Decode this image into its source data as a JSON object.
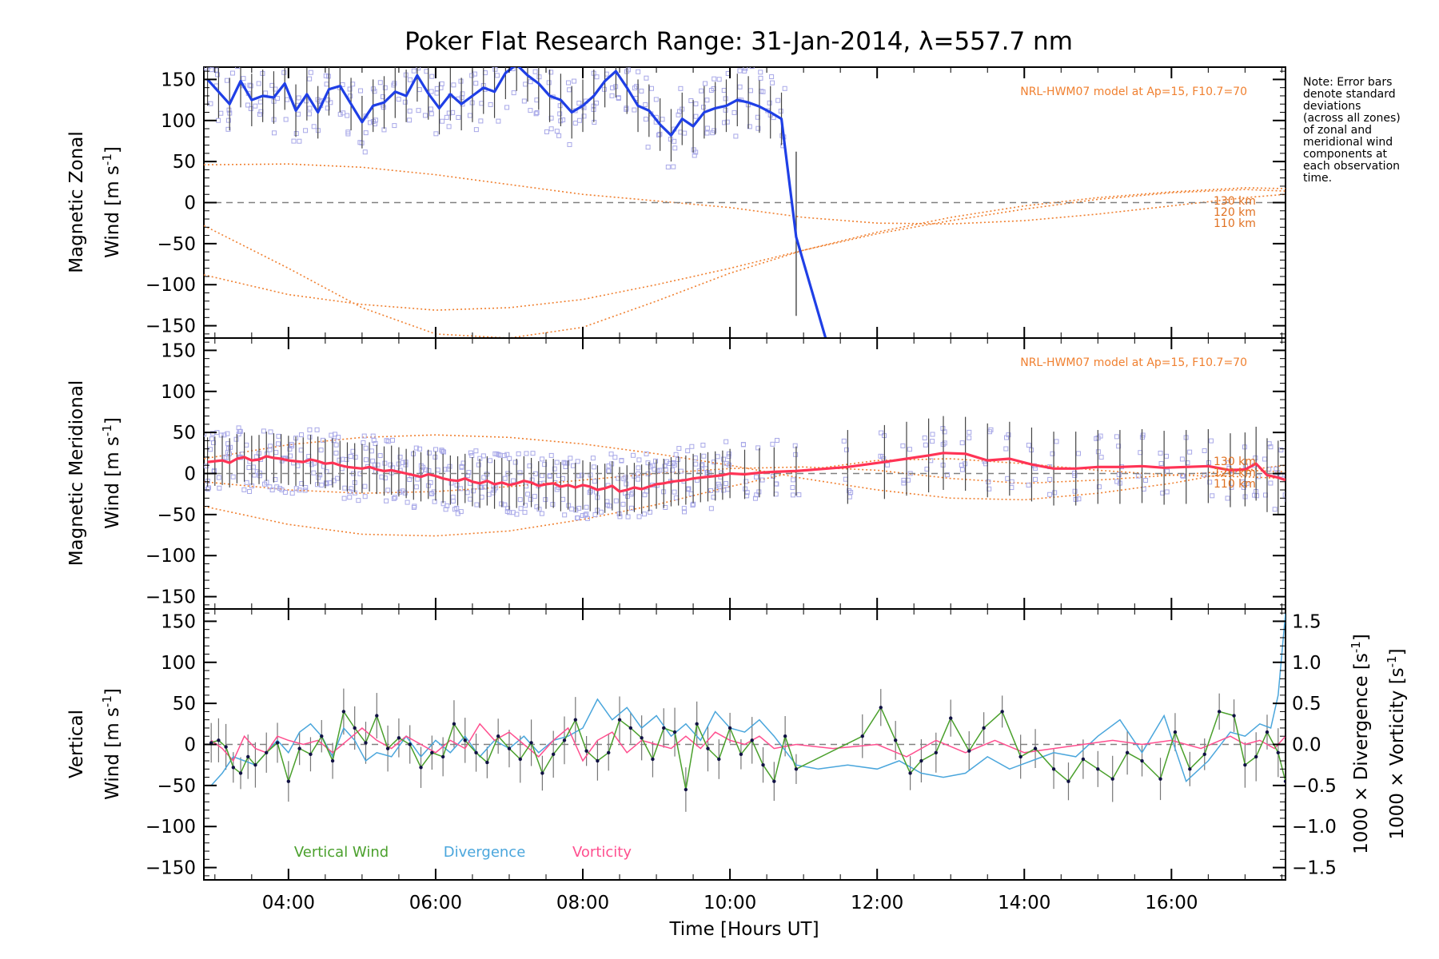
{
  "colors": {
    "zonal": "#1f3fe6",
    "meridional": "#ff3355",
    "model": "#f08030",
    "scatter": "#a8a8e8",
    "vertical": "#4aa02c",
    "divergence": "#4aa6dc",
    "vorticity": "#ff4f8f",
    "errorbar": "#444444",
    "dash": "#808080"
  },
  "chart_data": [
    {
      "type": "line",
      "title": "Poker Flat Research Range: 31-Jan-2014, λ=557.7 nm",
      "ylabel_line1": "Magnetic Zonal",
      "ylabel_line2": "Wind [m s",
      "ylabel_sup": "-1",
      "ylabel_end": "]",
      "ylim": [
        -165,
        165
      ],
      "xlim": [
        2.85,
        17.55
      ],
      "yticks": [
        "150",
        "100",
        "50",
        "0",
        "−50",
        "−100",
        "−150"
      ],
      "model_label": "NRL-HWM07 model at Ap=15, F10.7=70",
      "model_altitudes": [
        "130 km",
        "120 km",
        "110 km"
      ],
      "series": [
        {
          "x": [
            2.9,
            3.05,
            3.2,
            3.35,
            3.5,
            3.65,
            3.8,
            3.95,
            4.1,
            4.25,
            4.4,
            4.55,
            4.7,
            4.85,
            5.0,
            5.15,
            5.3,
            5.45,
            5.6,
            5.75,
            5.9,
            6.05,
            6.2,
            6.35,
            6.5,
            6.65,
            6.8,
            6.95,
            7.1,
            7.25,
            7.4,
            7.55,
            7.7,
            7.85,
            8.0,
            8.15,
            8.3,
            8.45,
            8.6,
            8.75,
            8.9,
            9.05,
            9.2,
            9.35,
            9.5,
            9.65,
            9.8,
            9.95,
            10.1,
            10.25,
            10.4,
            10.55,
            10.7,
            10.9,
            11.3
          ],
          "y": [
            150,
            135,
            120,
            148,
            125,
            130,
            128,
            145,
            112,
            132,
            110,
            138,
            142,
            120,
            98,
            118,
            122,
            135,
            130,
            155,
            133,
            115,
            132,
            120,
            130,
            140,
            135,
            158,
            168,
            155,
            145,
            130,
            125,
            110,
            118,
            130,
            148,
            160,
            140,
            118,
            112,
            95,
            82,
            102,
            93,
            110,
            115,
            118,
            125,
            122,
            117,
            110,
            102,
            -42,
            -165
          ]
        }
      ],
      "model_curves": [
        {
          "x": [
            2.85,
            4.0,
            5.0,
            6.0,
            7.0,
            8.0,
            9.0,
            10.0,
            11.0,
            12.0,
            13.0,
            14.0,
            15.0,
            16.0,
            17.0,
            17.55
          ],
          "y": [
            46,
            47,
            43,
            34,
            22,
            10,
            2,
            -6,
            -18,
            -25,
            -26,
            -22,
            -14,
            -4,
            6,
            10
          ]
        },
        {
          "x": [
            2.85,
            4.0,
            5.0,
            6.0,
            7.0,
            8.0,
            9.0,
            10.0,
            11.0,
            12.0,
            13.0,
            14.0,
            15.0,
            16.0,
            17.0,
            17.55
          ],
          "y": [
            -88,
            -112,
            -124,
            -131,
            -128,
            -118,
            -100,
            -80,
            -58,
            -36,
            -18,
            -4,
            6,
            13,
            18,
            17
          ]
        },
        {
          "x": [
            2.85,
            4.0,
            5.0,
            6.0,
            7.0,
            8.0,
            9.0,
            10.0,
            11.0,
            12.0,
            13.0,
            14.0,
            15.0,
            16.0,
            17.0,
            17.55
          ],
          "y": [
            -28,
            -80,
            -128,
            -160,
            -165,
            -152,
            -120,
            -86,
            -58,
            -38,
            -22,
            -8,
            4,
            12,
            16,
            14
          ]
        }
      ]
    },
    {
      "type": "line",
      "ylabel_line1": "Magnetic Meridional",
      "ylabel_line2": "Wind [m s",
      "ylabel_sup": "-1",
      "ylabel_end": "]",
      "ylim": [
        -165,
        165
      ],
      "xlim": [
        2.85,
        17.55
      ],
      "yticks": [
        "150",
        "100",
        "50",
        "0",
        "−50",
        "−100",
        "−150"
      ],
      "model_label": "NRL-HWM07 model at Ap=15, F10.7=70",
      "model_altitudes": [
        "130 km",
        "120 km",
        "110 km"
      ],
      "series": [
        {
          "x": [
            2.9,
            3.0,
            3.1,
            3.2,
            3.3,
            3.4,
            3.5,
            3.6,
            3.7,
            3.8,
            3.9,
            4.0,
            4.1,
            4.2,
            4.3,
            4.4,
            4.5,
            4.6,
            4.7,
            4.8,
            4.9,
            5.0,
            5.1,
            5.2,
            5.3,
            5.4,
            5.5,
            5.6,
            5.7,
            5.8,
            5.9,
            6.0,
            6.1,
            6.2,
            6.3,
            6.4,
            6.5,
            6.6,
            6.7,
            6.8,
            6.9,
            7.0,
            7.1,
            7.2,
            7.3,
            7.4,
            7.5,
            7.6,
            7.7,
            7.8,
            7.9,
            8.0,
            8.1,
            8.2,
            8.3,
            8.4,
            8.5,
            8.6,
            8.7,
            8.8,
            8.9,
            9.0,
            9.1,
            9.2,
            9.3,
            9.4,
            9.5,
            9.6,
            9.7,
            9.8,
            9.9,
            10.0,
            10.2,
            10.4,
            10.6,
            10.9,
            11.6,
            12.1,
            12.4,
            12.7,
            12.9,
            13.2,
            13.5,
            13.8,
            14.1,
            14.4,
            14.7,
            15.0,
            15.3,
            15.6,
            15.9,
            16.2,
            16.5,
            16.8,
            17.0,
            17.15,
            17.3,
            17.45,
            17.55
          ],
          "y": [
            14,
            15,
            16,
            13,
            18,
            20,
            16,
            17,
            21,
            19,
            18,
            16,
            15,
            14,
            17,
            15,
            12,
            13,
            10,
            8,
            7,
            6,
            8,
            5,
            3,
            4,
            2,
            0,
            -2,
            -4,
            -1,
            -3,
            -6,
            -8,
            -9,
            -6,
            -10,
            -12,
            -9,
            -13,
            -11,
            -14,
            -12,
            -9,
            -11,
            -15,
            -13,
            -12,
            -16,
            -14,
            -17,
            -14,
            -16,
            -20,
            -18,
            -15,
            -22,
            -20,
            -17,
            -19,
            -16,
            -13,
            -12,
            -10,
            -9,
            -8,
            -6,
            -5,
            -4,
            -3,
            -2,
            0,
            -1,
            1,
            2,
            3,
            8,
            14,
            18,
            22,
            25,
            24,
            16,
            18,
            11,
            6,
            6,
            8,
            8,
            9,
            7,
            8,
            9,
            4,
            5,
            12,
            -2,
            -5,
            -8
          ]
        }
      ],
      "model_curves": [
        {
          "x": [
            2.85,
            4.0,
            5.0,
            6.0,
            7.0,
            8.0,
            9.0,
            10.0,
            11.0,
            12.0,
            13.0,
            14.0,
            15.0,
            16.0,
            17.0,
            17.55
          ],
          "y": [
            18,
            35,
            44,
            47,
            44,
            36,
            24,
            10,
            -6,
            -20,
            -30,
            -32,
            -24,
            -12,
            4,
            10
          ]
        },
        {
          "x": [
            2.85,
            4.0,
            5.0,
            6.0,
            7.0,
            8.0,
            9.0,
            10.0,
            11.0,
            12.0,
            13.0,
            14.0,
            15.0,
            16.0,
            17.0,
            17.55
          ],
          "y": [
            -40,
            -62,
            -74,
            -76,
            -70,
            -56,
            -38,
            -16,
            4,
            16,
            18,
            12,
            4,
            -2,
            -4,
            -6
          ]
        },
        {
          "x": [
            2.85,
            4.0,
            5.0,
            6.0,
            7.0,
            8.0,
            9.0,
            10.0,
            11.0,
            12.0,
            13.0,
            14.0,
            15.0,
            16.0,
            17.0,
            17.55
          ],
          "y": [
            -10,
            -20,
            -24,
            -22,
            -16,
            -8,
            0,
            6,
            8,
            4,
            -6,
            -12,
            -8,
            -2,
            4,
            2
          ]
        }
      ]
    },
    {
      "type": "line",
      "ylabel_line1": "Vertical",
      "ylabel_line2": "Wind [m s",
      "ylabel_sup": "-1",
      "ylabel_end": "]",
      "ylim": [
        -165,
        165
      ],
      "xlim": [
        2.85,
        17.55
      ],
      "yticks": [
        "150",
        "100",
        "50",
        "0",
        "−50",
        "−100",
        "−150"
      ],
      "y2label_div": "1000 × Divergence [s",
      "y2label_vort": "1000 × Vorticity [s",
      "y2label_sup": "-1",
      "y2label_end": "]",
      "y2lim": [
        -1.65,
        1.65
      ],
      "y2ticks": [
        "1.5",
        "1.0",
        "0.5",
        "0.0",
        "−0.5",
        "−1.0",
        "−1.5"
      ],
      "xticks": [
        "04:00",
        "06:00",
        "08:00",
        "10:00",
        "12:00",
        "14:00",
        "16:00"
      ],
      "xlabel": "Time [Hours UT]",
      "legend": [
        "Vertical Wind",
        "Divergence",
        "Vorticity"
      ],
      "series": [
        {
          "name": "Vertical Wind",
          "x": [
            2.95,
            3.05,
            3.15,
            3.25,
            3.35,
            3.45,
            3.55,
            3.7,
            3.85,
            4.0,
            4.15,
            4.3,
            4.45,
            4.6,
            4.75,
            4.9,
            5.05,
            5.2,
            5.35,
            5.5,
            5.65,
            5.8,
            5.95,
            6.1,
            6.25,
            6.4,
            6.55,
            6.7,
            6.85,
            7.0,
            7.15,
            7.3,
            7.45,
            7.6,
            7.75,
            7.9,
            8.05,
            8.2,
            8.35,
            8.5,
            8.65,
            8.8,
            8.95,
            9.1,
            9.25,
            9.4,
            9.55,
            9.7,
            9.85,
            10.0,
            10.15,
            10.3,
            10.45,
            10.6,
            10.75,
            10.9,
            11.8,
            12.05,
            12.25,
            12.45,
            12.6,
            12.8,
            13.0,
            13.25,
            13.45,
            13.7,
            13.95,
            14.15,
            14.4,
            14.6,
            14.8,
            15.0,
            15.2,
            15.4,
            15.6,
            15.85,
            16.05,
            16.25,
            16.45,
            16.65,
            16.85,
            17.0,
            17.15,
            17.3,
            17.45,
            17.55
          ],
          "y": [
            2,
            5,
            -3,
            -28,
            -35,
            -15,
            -25,
            -10,
            2,
            -45,
            -5,
            -12,
            10,
            -20,
            40,
            20,
            2,
            35,
            -5,
            8,
            0,
            -28,
            -10,
            -15,
            25,
            5,
            -10,
            -22,
            10,
            -5,
            -18,
            2,
            -35,
            -12,
            5,
            30,
            -8,
            -20,
            -10,
            30,
            20,
            8,
            -18,
            20,
            15,
            -55,
            25,
            -5,
            -18,
            20,
            -12,
            5,
            -25,
            -45,
            10,
            -30,
            10,
            45,
            5,
            -35,
            -20,
            -10,
            32,
            -8,
            20,
            40,
            -15,
            -5,
            -30,
            -45,
            -18,
            -30,
            -42,
            -10,
            -20,
            -42,
            15,
            -30,
            -12,
            40,
            35,
            -25,
            -15,
            15,
            -10,
            -45
          ]
        },
        {
          "name": "Divergence",
          "x": [
            2.95,
            3.1,
            3.25,
            3.4,
            3.55,
            3.7,
            3.85,
            4.0,
            4.15,
            4.3,
            4.45,
            4.6,
            4.75,
            4.9,
            5.05,
            5.2,
            5.4,
            5.6,
            5.8,
            6.0,
            6.2,
            6.4,
            6.6,
            6.8,
            7.0,
            7.2,
            7.4,
            7.6,
            7.8,
            8.0,
            8.2,
            8.4,
            8.6,
            8.8,
            9.0,
            9.2,
            9.4,
            9.6,
            9.8,
            10.0,
            10.2,
            10.4,
            10.6,
            10.9,
            11.2,
            11.6,
            12.0,
            12.3,
            12.6,
            12.9,
            13.2,
            13.5,
            13.8,
            14.1,
            14.4,
            14.7,
            15.0,
            15.3,
            15.6,
            15.9,
            16.2,
            16.5,
            16.8,
            17.0,
            17.2,
            17.35,
            17.45,
            17.55
          ],
          "y": [
            -0.5,
            -0.35,
            -0.15,
            -0.2,
            -0.25,
            -0.1,
            0.05,
            -0.1,
            0.15,
            0.25,
            0.1,
            -0.15,
            0.2,
            0.05,
            -0.2,
            -0.1,
            -0.15,
            0.1,
            -0.15,
            0.05,
            -0.1,
            0.1,
            -0.15,
            0.05,
            -0.05,
            0.1,
            -0.1,
            0.05,
            0.1,
            0.2,
            0.55,
            0.3,
            0.45,
            0.2,
            0.35,
            0.1,
            0.25,
            0.05,
            0.4,
            0.2,
            0.15,
            0.3,
            0.1,
            -0.25,
            -0.3,
            -0.25,
            -0.3,
            -0.2,
            -0.35,
            -0.4,
            -0.35,
            -0.15,
            -0.3,
            -0.2,
            -0.1,
            -0.15,
            0.1,
            0.3,
            -0.1,
            0.35,
            -0.45,
            -0.2,
            0.15,
            0.1,
            0.25,
            0.2,
            0.6,
            1.6
          ]
        },
        {
          "name": "Vorticity",
          "x": [
            2.95,
            3.1,
            3.25,
            3.4,
            3.55,
            3.7,
            3.85,
            4.0,
            4.2,
            4.4,
            4.6,
            4.8,
            5.0,
            5.2,
            5.4,
            5.6,
            5.8,
            6.0,
            6.2,
            6.4,
            6.6,
            6.8,
            7.0,
            7.2,
            7.4,
            7.6,
            7.8,
            8.0,
            8.2,
            8.4,
            8.6,
            8.8,
            9.0,
            9.2,
            9.4,
            9.6,
            9.8,
            10.0,
            10.2,
            10.4,
            10.6,
            10.9,
            11.4,
            12.0,
            12.4,
            12.8,
            13.2,
            13.6,
            14.0,
            14.4,
            14.8,
            15.2,
            15.6,
            16.0,
            16.4,
            16.8,
            17.0,
            17.2,
            17.4,
            17.55
          ],
          "y": [
            0.05,
            -0.05,
            -0.2,
            0.1,
            -0.05,
            -0.1,
            0.1,
            0.05,
            0.0,
            0.05,
            -0.1,
            0.05,
            0.2,
            0.05,
            -0.05,
            0.1,
            0.0,
            -0.1,
            0.05,
            -0.05,
            0.25,
            0.05,
            0.15,
            0.0,
            -0.15,
            0.05,
            0.2,
            -0.2,
            0.05,
            0.15,
            -0.1,
            0.05,
            0.0,
            -0.05,
            0.1,
            -0.05,
            0.15,
            0.05,
            0.0,
            0.1,
            -0.05,
            0.0,
            -0.05,
            0.0,
            -0.15,
            0.05,
            -0.1,
            0.05,
            -0.1,
            -0.05,
            0.0,
            0.05,
            0.0,
            0.05,
            -0.05,
            0.1,
            0.0,
            0.05,
            -0.05,
            0.1
          ]
        }
      ]
    }
  ],
  "note_lines": [
    "Note: Error bars",
    "denote standard",
    "deviations",
    "(across all zones)",
    "of zonal and",
    "meridional wind",
    "components at",
    "each observation",
    "time."
  ]
}
